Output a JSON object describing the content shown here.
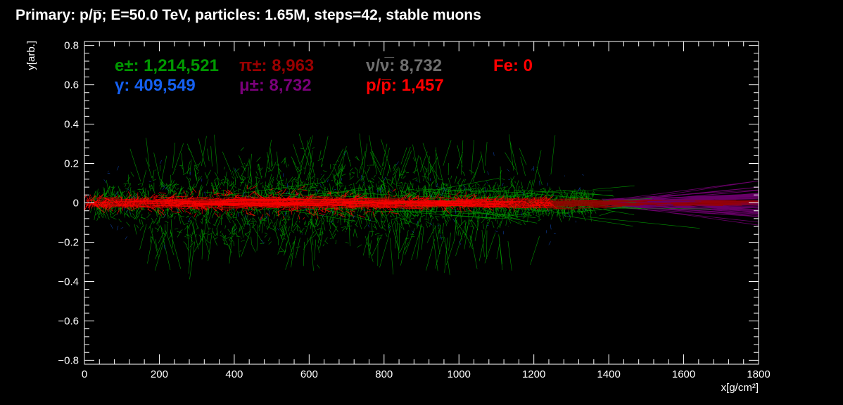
{
  "chart_data": {
    "type": "scatter",
    "title": "Primary: p/p̅; E=50.0 TeV, particles: 1.65M, steps=42, stable muons",
    "xlabel": "x[g/cm²]",
    "ylabel": "y[arb.]",
    "xlim": [
      0,
      1800
    ],
    "ylim": [
      -0.82,
      0.82
    ],
    "x_ticks": [
      0,
      200,
      400,
      600,
      800,
      1000,
      1200,
      1400,
      1600,
      1800
    ],
    "x_tick_labels": [
      "0",
      "200",
      "400",
      "600",
      "800",
      "1000",
      "1200",
      "1400",
      "1600",
      "1800"
    ],
    "y_ticks": [
      -0.8,
      -0.6,
      -0.4,
      -0.2,
      0,
      0.2,
      0.4,
      0.6,
      0.8
    ],
    "y_tick_labels": [
      "−0.8",
      "−0.6",
      "−0.4",
      "−0.2",
      "0",
      "0.2",
      "0.4",
      "0.6",
      "0.8"
    ],
    "grid": false,
    "background": "#000000",
    "axis_color": "#ffffff",
    "legend_position": "top-left",
    "legend": [
      {
        "label": "e±: 1,214,521",
        "color": "#009900"
      },
      {
        "label": "γ: 409,549",
        "color": "#1560f0"
      },
      {
        "label": "π±: 8,963",
        "color": "#990000"
      },
      {
        "label": "μ±: 8,732",
        "color": "#7a007a"
      },
      {
        "label": "ν/ν̅: 8,732",
        "color": "#6f6f6f"
      },
      {
        "label": "p/p̅: 1,457",
        "color": "#ff0000"
      },
      {
        "label": "Fe: 0",
        "color": "#ff0000"
      }
    ],
    "series": [
      {
        "name": "e±",
        "color": "#009900",
        "x_range": [
          20,
          1690
        ],
        "y_range": [
          -0.31,
          0.34
        ],
        "core_x": [
          250,
          700
        ],
        "core_halfwidth": 0.18
      },
      {
        "name": "γ",
        "color": "#1560f0",
        "x_range": [
          30,
          1400
        ],
        "y_range": [
          -0.2,
          0.2
        ]
      },
      {
        "name": "π±",
        "color": "#990000",
        "x_range": [
          0,
          1800
        ],
        "y_range": [
          -0.02,
          0.02
        ]
      },
      {
        "name": "μ±",
        "color": "#7a007a",
        "x_range": [
          1400,
          1800
        ],
        "y_range": [
          -0.12,
          0.12
        ]
      },
      {
        "name": "p/p̅",
        "color": "#ff0000",
        "x_range": [
          0,
          1400
        ],
        "y_range": [
          -0.08,
          0.08
        ]
      }
    ]
  }
}
